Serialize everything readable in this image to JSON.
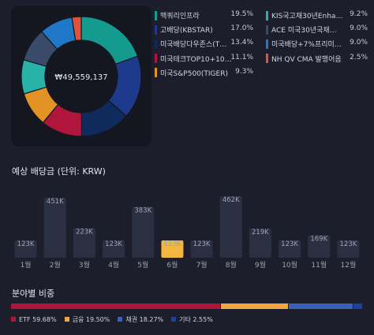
{
  "portfolio": {
    "total": "₩49,559,137",
    "colors": {
      "background": "#1c1f2b",
      "card": "#141720"
    }
  },
  "holdings": [
    {
      "name": "맥쿼리인프라",
      "pct": "19.5%",
      "value": 19.5,
      "color": "#149a8e"
    },
    {
      "name": "고배당(KBSTAR)",
      "pct": "17.0%",
      "value": 17.0,
      "color": "#1d3a8c"
    },
    {
      "name": "미국배당다우존스(T…",
      "pct": "13.4%",
      "value": 13.4,
      "color": "#0f2a5c"
    },
    {
      "name": "미국테크TOP10+10…",
      "pct": "11.1%",
      "value": 11.1,
      "color": "#b0163c"
    },
    {
      "name": "미국S&P500(TIGER)",
      "pct": "9.3%",
      "value": 9.3,
      "color": "#e39325"
    },
    {
      "name": "KIS국고채30년Enha…",
      "pct": "9.2%",
      "value": 9.2,
      "color": "#29b2a8"
    },
    {
      "name": "ACE 미국30년국채…",
      "pct": "9.0%",
      "value": 9.0,
      "color": "#3a4b6a"
    },
    {
      "name": "미국배당+7%프리미…",
      "pct": "9.0%",
      "value": 9.0,
      "color": "#1f77c8"
    },
    {
      "name": "NH QV CMA 발행어음",
      "pct": "2.5%",
      "value": 2.5,
      "color": "#e0523a"
    }
  ],
  "dividends": {
    "title": "예상 배당금 (단위: KRW)",
    "highlight_color": "#f0b63f",
    "bar_color": "#2a3042",
    "months": [
      {
        "label": "1월",
        "value": 123,
        "text": "123K",
        "highlight": false
      },
      {
        "label": "2월",
        "value": 451,
        "text": "451K",
        "highlight": false
      },
      {
        "label": "3월",
        "value": 223,
        "text": "223K",
        "highlight": false
      },
      {
        "label": "4월",
        "value": 123,
        "text": "123K",
        "highlight": false
      },
      {
        "label": "5월",
        "value": 383,
        "text": "383K",
        "highlight": false
      },
      {
        "label": "6월",
        "value": 123,
        "text": "123K",
        "highlight": true
      },
      {
        "label": "7월",
        "value": 123,
        "text": "123K",
        "highlight": false
      },
      {
        "label": "8월",
        "value": 462,
        "text": "462K",
        "highlight": false
      },
      {
        "label": "9월",
        "value": 219,
        "text": "219K",
        "highlight": false
      },
      {
        "label": "10월",
        "value": 123,
        "text": "123K",
        "highlight": false
      },
      {
        "label": "11월",
        "value": 169,
        "text": "169K",
        "highlight": false
      },
      {
        "label": "12월",
        "value": 123,
        "text": "123K",
        "highlight": false
      }
    ]
  },
  "allocation": {
    "title": "분야별 비중",
    "items": [
      {
        "label": "ETF 59.68%",
        "value": 59.68,
        "color": "#b0163c"
      },
      {
        "label": "금융 19.50%",
        "value": 19.5,
        "color": "#f0a642"
      },
      {
        "label": "채권 18.27%",
        "value": 18.27,
        "color": "#3a5fb8"
      },
      {
        "label": "기타 2.55%",
        "value": 2.55,
        "color": "#1e3f9c"
      }
    ]
  },
  "chart_data": {
    "type": "bar",
    "title": "예상 배당금 (단위: KRW)",
    "categories": [
      "1월",
      "2월",
      "3월",
      "4월",
      "5월",
      "6월",
      "7월",
      "8월",
      "9월",
      "10월",
      "11월",
      "12월"
    ],
    "values": [
      123,
      451,
      223,
      123,
      383,
      123,
      123,
      462,
      219,
      123,
      169,
      123
    ],
    "ylabel": "",
    "xlabel": ""
  }
}
